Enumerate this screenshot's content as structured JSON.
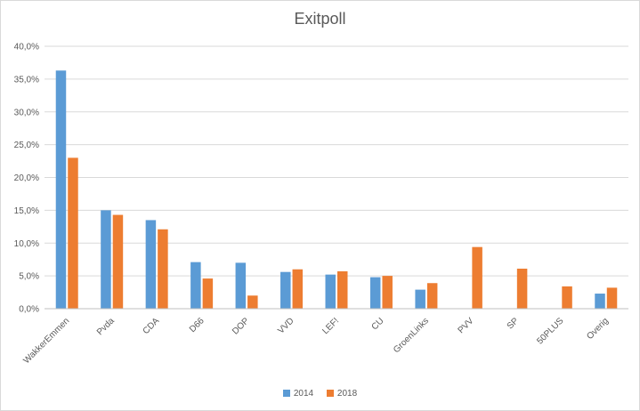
{
  "chart_data": {
    "type": "bar",
    "title": "Exitpoll",
    "categories": [
      "WakkerEmmen",
      "Pvda",
      "CDA",
      "D66",
      "DOP",
      "VVD",
      "LEF!",
      "CU",
      "GroenLinks",
      "PVV",
      "SP",
      "50PLUS",
      "Overig"
    ],
    "series": [
      {
        "name": "2014",
        "color": "#5b9bd5",
        "values": [
          36.3,
          15.0,
          13.5,
          7.1,
          7.0,
          5.6,
          5.2,
          4.8,
          2.9,
          null,
          null,
          null,
          2.3
        ]
      },
      {
        "name": "2018",
        "color": "#ed7d31",
        "values": [
          23.0,
          14.3,
          12.1,
          4.6,
          2.0,
          6.0,
          5.7,
          5.0,
          3.9,
          9.4,
          6.1,
          3.4,
          3.2
        ]
      }
    ],
    "ylim": [
      0,
      40
    ],
    "yticks": [
      "0,0%",
      "5,0%",
      "10,0%",
      "15,0%",
      "20,0%",
      "25,0%",
      "30,0%",
      "35,0%",
      "40,0%"
    ],
    "grid": true,
    "legend_position": "bottom"
  }
}
